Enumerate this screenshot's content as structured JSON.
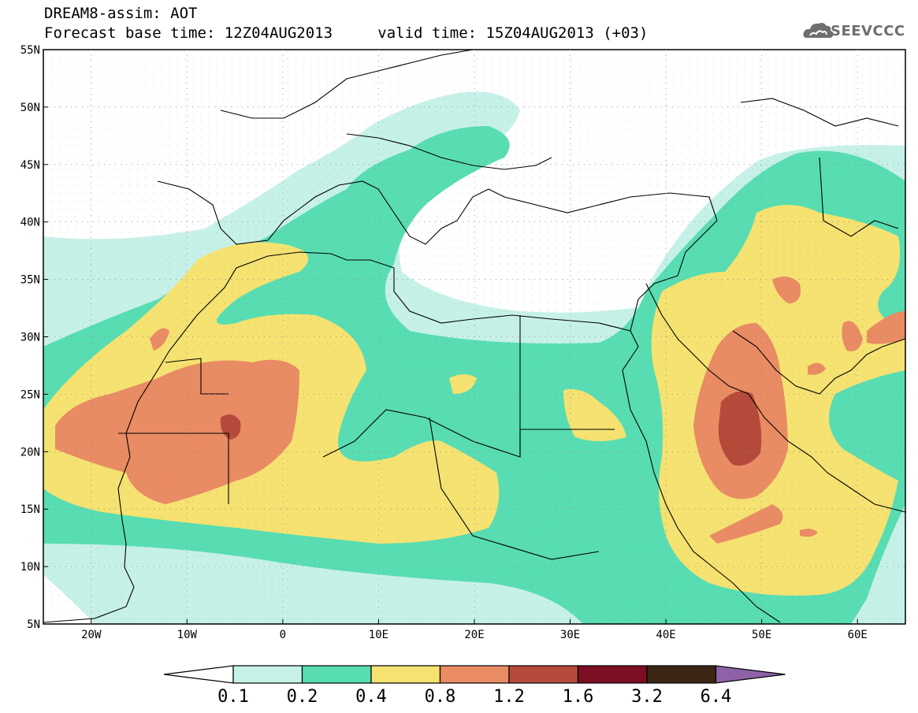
{
  "header": {
    "title": "DREAM8-assim: AOT",
    "base_time": "Forecast base time: 12Z04AUG2013",
    "valid_time": "valid time: 15Z04AUG2013 (+03)"
  },
  "logo": {
    "text": "SEEVCCC",
    "icon": "cloud-icon"
  },
  "map": {
    "lon_range": [
      -25,
      65
    ],
    "lat_range": [
      5,
      55
    ],
    "lat_ticks": [
      "55N",
      "50N",
      "45N",
      "40N",
      "35N",
      "30N",
      "25N",
      "20N",
      "15N",
      "10N",
      "5N"
    ],
    "lon_ticks": [
      "20W",
      "10W",
      "0",
      "10E",
      "20E",
      "30E",
      "40E",
      "50E",
      "60E"
    ],
    "colors": {
      "level_0.1": "#c6f1e8",
      "level_0.2": "#58ddb2",
      "level_0.4": "#f5e271",
      "level_0.8": "#e98b63",
      "level_1.2": "#b54a3a",
      "coast": "#000000"
    }
  },
  "colorbar": {
    "labels": [
      "0.1",
      "0.2",
      "0.4",
      "0.8",
      "1.2",
      "1.6",
      "3.2",
      "6.4"
    ],
    "colors": [
      "#ffffff",
      "#c6f1e8",
      "#58ddb2",
      "#f5e271",
      "#e98b63",
      "#b54a3a",
      "#7c0f23",
      "#3b2616",
      "#8d62a7"
    ]
  }
}
